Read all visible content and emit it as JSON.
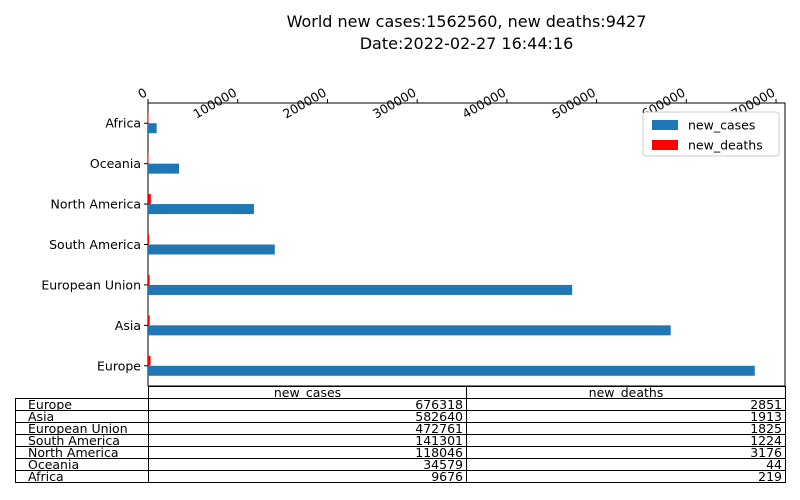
{
  "chart_data": {
    "type": "bar",
    "orientation": "horizontal",
    "title": [
      "World new cases:1562560, new deaths:9427",
      "Date:2022-02-27 16:44:16"
    ],
    "categories": [
      "Europe",
      "Asia",
      "European Union",
      "South America",
      "North America",
      "Oceania",
      "Africa"
    ],
    "series": [
      {
        "name": "new_cases",
        "color": "#1f77b4",
        "values": [
          676318,
          582640,
          472761,
          141301,
          118046,
          34579,
          9676
        ]
      },
      {
        "name": "new_deaths",
        "color": "#ff0000",
        "values": [
          2851,
          1913,
          1825,
          1224,
          3176,
          44,
          219
        ]
      }
    ],
    "x_ticks": [
      0,
      100000,
      200000,
      300000,
      400000,
      500000,
      600000,
      700000
    ],
    "xlim": [
      0,
      710000
    ],
    "x_axis_position": "top",
    "x_tick_rotation": 30,
    "legend_position": "top-right",
    "grid": false,
    "table": {
      "columns": [
        "new_cases",
        "new_deaths"
      ]
    }
  }
}
